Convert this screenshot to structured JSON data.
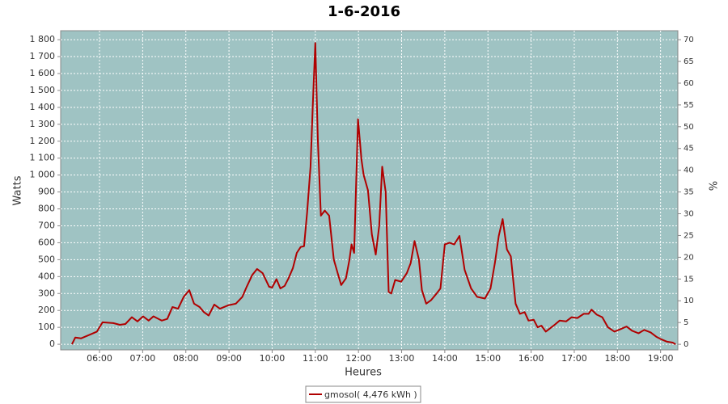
{
  "chart_data": {
    "type": "line",
    "title": "1-6-2016",
    "x_label": "Heures",
    "y_label": "Watts",
    "y2_label": "%",
    "xlim": [
      5.1,
      19.4
    ],
    "xticks": [
      {
        "value": 6,
        "label": "06:00"
      },
      {
        "value": 7,
        "label": "07:00"
      },
      {
        "value": 8,
        "label": "08:00"
      },
      {
        "value": 9,
        "label": "09:00"
      },
      {
        "value": 10,
        "label": "10:00"
      },
      {
        "value": 11,
        "label": "11:00"
      },
      {
        "value": 12,
        "label": "12:00"
      },
      {
        "value": 13,
        "label": "13:00"
      },
      {
        "value": 14,
        "label": "14:00"
      },
      {
        "value": 15,
        "label": "15:00"
      },
      {
        "value": 16,
        "label": "16:00"
      },
      {
        "value": 17,
        "label": "17:00"
      },
      {
        "value": 18,
        "label": "18:00"
      },
      {
        "value": 19,
        "label": "19:00"
      }
    ],
    "ylim": [
      -33,
      1853
    ],
    "yticks": [
      0,
      100,
      200,
      300,
      400,
      500,
      600,
      700,
      800,
      900,
      {
        "value": 1000,
        "label": "1 000"
      },
      {
        "value": 1100,
        "label": "1 100"
      },
      {
        "value": 1200,
        "label": "1 200"
      },
      {
        "value": 1300,
        "label": "1 300"
      },
      {
        "value": 1400,
        "label": "1 400"
      },
      {
        "value": 1500,
        "label": "1 500"
      },
      {
        "value": 1600,
        "label": "1 600"
      },
      {
        "value": 1700,
        "label": "1 700"
      },
      {
        "value": 1800,
        "label": "1 800"
      }
    ],
    "y2lim": [
      -1.28,
      72.06
    ],
    "y2ticks": [
      0,
      5,
      10,
      15,
      20,
      25,
      30,
      35,
      40,
      45,
      50,
      55,
      60,
      65,
      70
    ],
    "grid": true,
    "legend": "bottom",
    "x": [
      5.36,
      5.44,
      5.57,
      5.76,
      5.94,
      6.07,
      6.32,
      6.47,
      6.6,
      6.75,
      6.88,
      7.01,
      7.14,
      7.25,
      7.44,
      7.57,
      7.69,
      7.82,
      7.95,
      8.08,
      8.19,
      8.32,
      8.42,
      8.53,
      8.66,
      8.79,
      8.98,
      9.16,
      9.31,
      9.41,
      9.54,
      9.65,
      9.78,
      9.93,
      10.0,
      10.1,
      10.19,
      10.29,
      10.38,
      10.48,
      10.57,
      10.66,
      10.74,
      10.81,
      10.89,
      10.94,
      11.0,
      11.06,
      11.13,
      11.22,
      11.32,
      11.43,
      11.52,
      11.6,
      11.71,
      11.79,
      11.84,
      11.9,
      11.99,
      12.07,
      12.12,
      12.22,
      12.31,
      12.4,
      12.48,
      12.55,
      12.63,
      12.7,
      12.76,
      12.85,
      12.99,
      13.12,
      13.21,
      13.3,
      13.4,
      13.47,
      13.57,
      13.68,
      13.81,
      13.9,
      14.0,
      14.11,
      14.22,
      14.34,
      14.46,
      14.61,
      14.75,
      14.93,
      15.06,
      15.16,
      15.25,
      15.34,
      15.44,
      15.53,
      15.64,
      15.74,
      15.85,
      15.94,
      16.06,
      16.15,
      16.24,
      16.34,
      16.52,
      16.66,
      16.81,
      16.94,
      17.07,
      17.22,
      17.33,
      17.4,
      17.52,
      17.65,
      17.78,
      17.93,
      18.08,
      18.21,
      18.34,
      18.49,
      18.62,
      18.77,
      18.9,
      19.01,
      19.15,
      19.28,
      19.35
    ],
    "series": [
      {
        "name": "gmosol( 4,476 kWh )",
        "color": "#b00000",
        "values": [
          0,
          40,
          35,
          55,
          75,
          130,
          125,
          115,
          120,
          160,
          135,
          165,
          140,
          165,
          140,
          150,
          220,
          210,
          280,
          320,
          240,
          220,
          190,
          170,
          235,
          210,
          230,
          240,
          280,
          340,
          410,
          445,
          420,
          340,
          335,
          385,
          330,
          345,
          390,
          450,
          540,
          575,
          580,
          780,
          1050,
          1400,
          1780,
          1200,
          760,
          790,
          760,
          500,
          420,
          350,
          390,
          500,
          590,
          540,
          1330,
          1090,
          1000,
          910,
          650,
          530,
          700,
          1050,
          900,
          310,
          300,
          380,
          370,
          420,
          480,
          610,
          500,
          320,
          240,
          260,
          300,
          330,
          590,
          600,
          590,
          640,
          440,
          330,
          280,
          270,
          330,
          480,
          640,
          740,
          560,
          520,
          240,
          180,
          190,
          140,
          145,
          100,
          110,
          75,
          110,
          140,
          135,
          160,
          155,
          180,
          180,
          205,
          175,
          160,
          100,
          75,
          90,
          105,
          80,
          65,
          85,
          70,
          45,
          30,
          15,
          10,
          0
        ]
      }
    ]
  }
}
